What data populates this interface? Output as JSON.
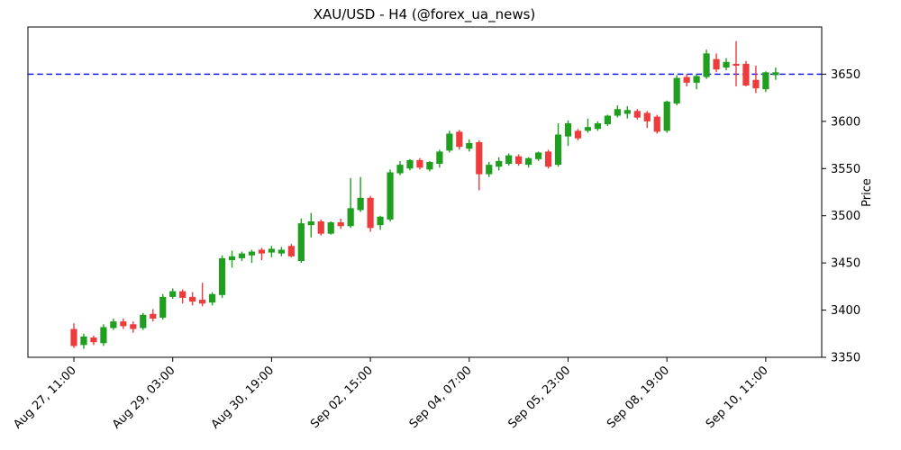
{
  "figure": {
    "title": "XAU/USD - H4 (@forex_ua_news)"
  },
  "chart_data": {
    "type": "candlestick",
    "title": "XAU/USD - H4 (@forex_ua_news)",
    "xlabel": "",
    "ylabel": "Price",
    "ylabel_side": "right",
    "ylim": [
      3350,
      3700
    ],
    "yticks": [
      3350,
      3400,
      3450,
      3500,
      3550,
      3600,
      3650
    ],
    "grid": false,
    "legend": "none",
    "xticks": [
      {
        "index": 0,
        "label": "Aug 27, 11:00"
      },
      {
        "index": 10,
        "label": "Aug 29, 03:00"
      },
      {
        "index": 20,
        "label": "Aug 30, 19:00"
      },
      {
        "index": 30,
        "label": "Sep 02, 15:00"
      },
      {
        "index": 40,
        "label": "Sep 04, 07:00"
      },
      {
        "index": 50,
        "label": "Sep 05, 23:00"
      },
      {
        "index": 60,
        "label": "Sep 08, 19:00"
      },
      {
        "index": 70,
        "label": "Sep 10, 11:00"
      }
    ],
    "hline": {
      "price": 3650,
      "color": "#0000ee",
      "style": "dashed"
    },
    "colors": {
      "up": "#1f9e1f",
      "down": "#ee3b3b",
      "hline": "#0000ee",
      "axis": "#000000"
    },
    "candles_format": "[open, high, low, close]",
    "candles": [
      [
        3380,
        3386,
        3360,
        3362
      ],
      [
        3363,
        3375,
        3359,
        3372
      ],
      [
        3371,
        3373,
        3363,
        3366
      ],
      [
        3365,
        3385,
        3362,
        3382
      ],
      [
        3381,
        3391,
        3379,
        3388
      ],
      [
        3388,
        3391,
        3380,
        3383
      ],
      [
        3385,
        3388,
        3376,
        3380
      ],
      [
        3381,
        3397,
        3379,
        3395
      ],
      [
        3396,
        3401,
        3388,
        3391
      ],
      [
        3392,
        3417,
        3390,
        3414
      ],
      [
        3414,
        3423,
        3412,
        3420
      ],
      [
        3420,
        3422,
        3407,
        3413
      ],
      [
        3414,
        3419,
        3405,
        3409
      ],
      [
        3411,
        3429,
        3404,
        3407
      ],
      [
        3408,
        3419,
        3405,
        3417
      ],
      [
        3416,
        3458,
        3413,
        3455
      ],
      [
        3453,
        3463,
        3445,
        3457
      ],
      [
        3455,
        3462,
        3452,
        3460
      ],
      [
        3458,
        3464,
        3450,
        3462
      ],
      [
        3464,
        3466,
        3453,
        3460
      ],
      [
        3461,
        3468,
        3456,
        3465
      ],
      [
        3460,
        3467,
        3457,
        3464
      ],
      [
        3468,
        3470,
        3456,
        3457
      ],
      [
        3452,
        3497,
        3450,
        3492
      ],
      [
        3490,
        3503,
        3477,
        3494
      ],
      [
        3494,
        3496,
        3479,
        3481
      ],
      [
        3481,
        3494,
        3480,
        3493
      ],
      [
        3493,
        3497,
        3486,
        3489
      ],
      [
        3489,
        3540,
        3487,
        3508
      ],
      [
        3506,
        3541,
        3504,
        3519
      ],
      [
        3519,
        3521,
        3483,
        3487
      ],
      [
        3490,
        3500,
        3485,
        3499
      ],
      [
        3496,
        3549,
        3494,
        3546
      ],
      [
        3545,
        3558,
        3543,
        3554
      ],
      [
        3550,
        3560,
        3548,
        3559
      ],
      [
        3559,
        3561,
        3549,
        3551
      ],
      [
        3549,
        3558,
        3547,
        3557
      ],
      [
        3555,
        3570,
        3551,
        3568
      ],
      [
        3569,
        3590,
        3567,
        3587
      ],
      [
        3589,
        3591,
        3570,
        3573
      ],
      [
        3571,
        3581,
        3568,
        3577
      ],
      [
        3578,
        3580,
        3527,
        3544
      ],
      [
        3544,
        3557,
        3541,
        3554
      ],
      [
        3552,
        3562,
        3548,
        3558
      ],
      [
        3555,
        3566,
        3553,
        3564
      ],
      [
        3563,
        3565,
        3553,
        3555
      ],
      [
        3554,
        3562,
        3551,
        3561
      ],
      [
        3560,
        3568,
        3558,
        3567
      ],
      [
        3568,
        3570,
        3550,
        3552
      ],
      [
        3554,
        3598,
        3552,
        3586
      ],
      [
        3584,
        3601,
        3574,
        3598
      ],
      [
        3590,
        3592,
        3580,
        3582
      ],
      [
        3590,
        3603,
        3588,
        3594
      ],
      [
        3592,
        3600,
        3590,
        3598
      ],
      [
        3597,
        3607,
        3595,
        3606
      ],
      [
        3606,
        3617,
        3604,
        3613
      ],
      [
        3608,
        3616,
        3603,
        3612
      ],
      [
        3611,
        3613,
        3602,
        3604
      ],
      [
        3609,
        3611,
        3593,
        3600
      ],
      [
        3605,
        3607,
        3587,
        3589
      ],
      [
        3590,
        3622,
        3588,
        3621
      ],
      [
        3619,
        3649,
        3617,
        3646
      ],
      [
        3647,
        3650,
        3637,
        3641
      ],
      [
        3641,
        3650,
        3634,
        3648
      ],
      [
        3647,
        3676,
        3645,
        3672
      ],
      [
        3666,
        3672,
        3652,
        3655
      ],
      [
        3657,
        3667,
        3654,
        3663
      ],
      [
        3661,
        3685,
        3637,
        3659
      ],
      [
        3661,
        3664,
        3637,
        3638
      ],
      [
        3644,
        3659,
        3630,
        3635
      ],
      [
        3634,
        3653,
        3631,
        3652
      ],
      [
        3649,
        3657,
        3644,
        3652
      ]
    ]
  }
}
